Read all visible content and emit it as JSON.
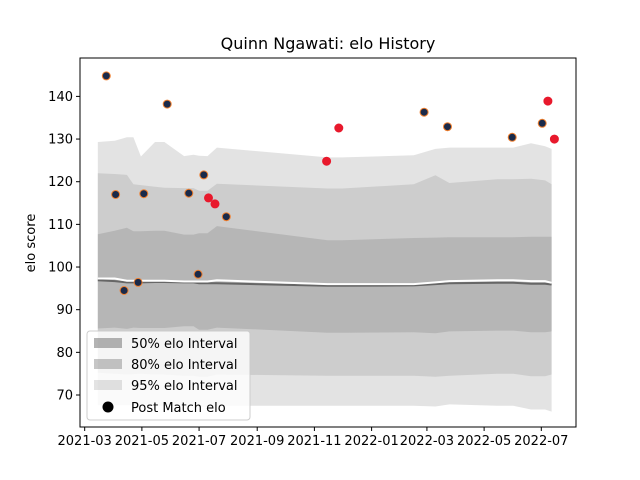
{
  "chart_data": {
    "type": "scatter",
    "title": "Quinn Ngawati: elo History",
    "xlabel": "",
    "ylabel": "elo score",
    "xlim": [
      "2021-02-24",
      "2022-08-07"
    ],
    "ylim": [
      62.5,
      149
    ],
    "x_ticks": [
      "2021-03",
      "2021-05",
      "2021-07",
      "2021-09",
      "2021-11",
      "2022-01",
      "2022-03",
      "2022-05",
      "2022-07"
    ],
    "y_ticks": [
      70,
      80,
      90,
      100,
      110,
      120,
      130,
      140
    ],
    "grid": false,
    "legend_position": "lower-left",
    "legend": {
      "band50": "50% elo Interval",
      "band80": "80% elo Interval",
      "band95": "95% elo Interval",
      "points": "Post Match elo"
    },
    "colors": {
      "band": "#808080",
      "median": "#666666",
      "mean": "#ffffff",
      "point_fill": "#1a2a4a",
      "point_fill_recent": "#e8192c",
      "point_edge": "#e8192c",
      "point_edge_early": "#f08030"
    },
    "bands_x": [
      "2021-03-15",
      "2021-04-02",
      "2021-04-15",
      "2021-04-22",
      "2021-04-30",
      "2021-05-15",
      "2021-05-25",
      "2021-06-15",
      "2021-06-25",
      "2021-07-01",
      "2021-07-10",
      "2021-07-20",
      "2021-11-15",
      "2021-12-01",
      "2022-02-15",
      "2022-03-10",
      "2022-03-25",
      "2022-05-15",
      "2022-06-01",
      "2022-06-20",
      "2022-07-05",
      "2022-07-12"
    ],
    "mean": [
      97.3,
      97.3,
      96.8,
      96.8,
      96.8,
      96.8,
      96.8,
      96.6,
      96.6,
      96.6,
      96.6,
      96.9,
      96.0,
      96.0,
      96.0,
      96.4,
      96.7,
      96.9,
      96.9,
      96.7,
      96.7,
      96.3
    ],
    "median": [
      96.9,
      96.7,
      96.4,
      96.4,
      96.4,
      96.5,
      96.5,
      96.4,
      96.4,
      96.2,
      96.2,
      96.2,
      95.6,
      95.6,
      95.7,
      96.0,
      96.2,
      96.3,
      96.3,
      96.1,
      96.1,
      95.9
    ],
    "p25": [
      85.6,
      85.8,
      85.5,
      85.8,
      85.7,
      85.7,
      85.7,
      86.1,
      86.1,
      85.3,
      85.3,
      85.8,
      84.6,
      84.6,
      84.7,
      84.5,
      84.9,
      85.1,
      85.1,
      84.7,
      84.7,
      84.9
    ],
    "p75": [
      107.7,
      108.5,
      109.2,
      108.4,
      108.4,
      108.5,
      108.5,
      107.6,
      107.6,
      107.9,
      107.9,
      109.6,
      106.3,
      106.3,
      106.8,
      106.9,
      107.0,
      107.0,
      107.0,
      107.1,
      107.1,
      107.1
    ],
    "p10": [
      75.2,
      75.0,
      74.8,
      74.9,
      75.0,
      74.8,
      74.8,
      74.5,
      74.5,
      74.3,
      74.3,
      74.8,
      74.5,
      74.5,
      74.5,
      74.3,
      74.5,
      75.0,
      75.0,
      74.4,
      74.4,
      74.8
    ],
    "p90": [
      122.0,
      121.8,
      121.6,
      119.4,
      119.2,
      118.8,
      118.6,
      118.5,
      118.5,
      117.9,
      117.9,
      119.5,
      118.4,
      118.4,
      119.4,
      121.5,
      119.7,
      120.6,
      120.6,
      120.7,
      120.3,
      119.4
    ],
    "p2_5": [
      67.6,
      67.6,
      67.6,
      67.6,
      67.5,
      67.5,
      67.5,
      67.6,
      67.6,
      67.2,
      67.2,
      67.5,
      67.5,
      67.5,
      67.5,
      67.3,
      67.8,
      67.5,
      67.5,
      66.6,
      66.6,
      66.1
    ],
    "p97_5": [
      129.3,
      129.6,
      130.4,
      130.4,
      125.9,
      129.3,
      129.3,
      126.0,
      126.3,
      126.1,
      126.0,
      128.0,
      125.7,
      125.7,
      126.2,
      127.7,
      128.0,
      128.0,
      128.0,
      129.0,
      128.3,
      127.7
    ],
    "points": [
      {
        "date": "2021-03-24",
        "elo": 144.8,
        "recent": false
      },
      {
        "date": "2021-04-03",
        "elo": 117.0,
        "recent": false
      },
      {
        "date": "2021-04-12",
        "elo": 94.5,
        "recent": false
      },
      {
        "date": "2021-04-27",
        "elo": 96.4,
        "recent": false
      },
      {
        "date": "2021-05-03",
        "elo": 117.2,
        "recent": false
      },
      {
        "date": "2021-05-28",
        "elo": 138.2,
        "recent": false
      },
      {
        "date": "2021-06-20",
        "elo": 117.3,
        "recent": false
      },
      {
        "date": "2021-06-30",
        "elo": 98.3,
        "recent": false
      },
      {
        "date": "2021-07-06",
        "elo": 121.6,
        "recent": false
      },
      {
        "date": "2021-07-11",
        "elo": 116.2,
        "recent": true
      },
      {
        "date": "2021-07-18",
        "elo": 114.8,
        "recent": true
      },
      {
        "date": "2021-07-30",
        "elo": 111.8,
        "recent": false
      },
      {
        "date": "2021-11-14",
        "elo": 124.8,
        "recent": true
      },
      {
        "date": "2021-11-27",
        "elo": 132.6,
        "recent": true
      },
      {
        "date": "2022-02-26",
        "elo": 136.3,
        "recent": false
      },
      {
        "date": "2022-03-23",
        "elo": 132.9,
        "recent": false
      },
      {
        "date": "2022-05-31",
        "elo": 130.4,
        "recent": false
      },
      {
        "date": "2022-07-02",
        "elo": 133.7,
        "recent": false
      },
      {
        "date": "2022-07-08",
        "elo": 138.9,
        "recent": true
      },
      {
        "date": "2022-07-15",
        "elo": 130.0,
        "recent": true
      }
    ]
  }
}
